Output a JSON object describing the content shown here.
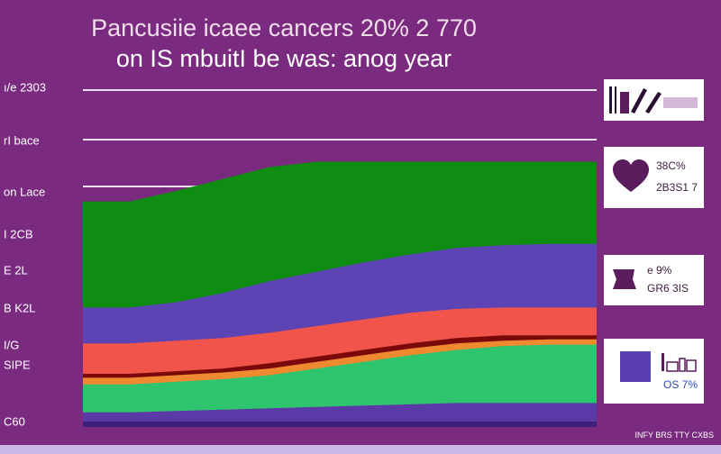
{
  "chart_data": {
    "type": "area",
    "title": "Pancusiie icaee cancers 20% 2 770",
    "subtitle": "on IS mbuitI be was: anog year",
    "y_tick_labels": [
      "ı/e 2303",
      "rI bace",
      "on Lace",
      "I 2CB",
      "E 2L",
      "B K2L",
      "I/G",
      "SIPE",
      "C60"
    ],
    "x_points": 12,
    "series": [
      {
        "color": "#0f8d12",
        "values": [
          16.6,
          16.6,
          17.4,
          18.3,
          19.2,
          19.6,
          19.6,
          19.6,
          19.6,
          19.6,
          19.6,
          19.6
        ]
      },
      {
        "color": "#5c44b4",
        "values": [
          8.6,
          8.6,
          9.0,
          9.7,
          10.6,
          11.3,
          12.0,
          12.6,
          13.1,
          13.3,
          13.4,
          13.4
        ]
      },
      {
        "color": "#f0544a",
        "values": [
          5.9,
          5.9,
          6.1,
          6.3,
          6.7,
          7.2,
          7.7,
          8.2,
          8.5,
          8.6,
          8.6,
          8.6
        ]
      },
      {
        "color": "#7a0a0a",
        "values": [
          3.6,
          3.6,
          3.8,
          4.0,
          4.4,
          4.9,
          5.4,
          5.9,
          6.3,
          6.5,
          6.5,
          6.5
        ]
      },
      {
        "color": "#f08a30",
        "values": [
          3.3,
          3.3,
          3.5,
          3.7,
          4.0,
          4.5,
          5.0,
          5.5,
          5.9,
          6.1,
          6.2,
          6.2
        ]
      },
      {
        "color": "#2fc46e",
        "values": [
          2.8,
          2.8,
          3.0,
          3.2,
          3.5,
          4.0,
          4.5,
          5.0,
          5.4,
          5.7,
          5.8,
          5.8
        ]
      },
      {
        "color": "#5b3aa8",
        "values": [
          0.7,
          0.7,
          0.8,
          0.9,
          1.0,
          1.1,
          1.2,
          1.3,
          1.4,
          1.4,
          1.4,
          1.4
        ]
      }
    ],
    "ylim": [
      0,
      25
    ],
    "grid": true,
    "legend": "right"
  },
  "side_cards": [
    {
      "icon": "chart-bars-icon",
      "text": ""
    },
    {
      "icon": "heart-icon",
      "text_1": "38C%",
      "text_2": "2B3S1 7"
    },
    {
      "icon": "pillow-icon",
      "text_1": "e 9%",
      "text_2": "GR6 3IS"
    },
    {
      "icon": "square-icon",
      "text_1": "OS 7%",
      "text_2": ""
    }
  ],
  "footer_text": "INFY BRS TTY CXBS",
  "colors": {
    "background": "#7a2a7f",
    "grid": "#e9e1ea",
    "card": "#ffffff",
    "accent": "#5a1c5c"
  }
}
